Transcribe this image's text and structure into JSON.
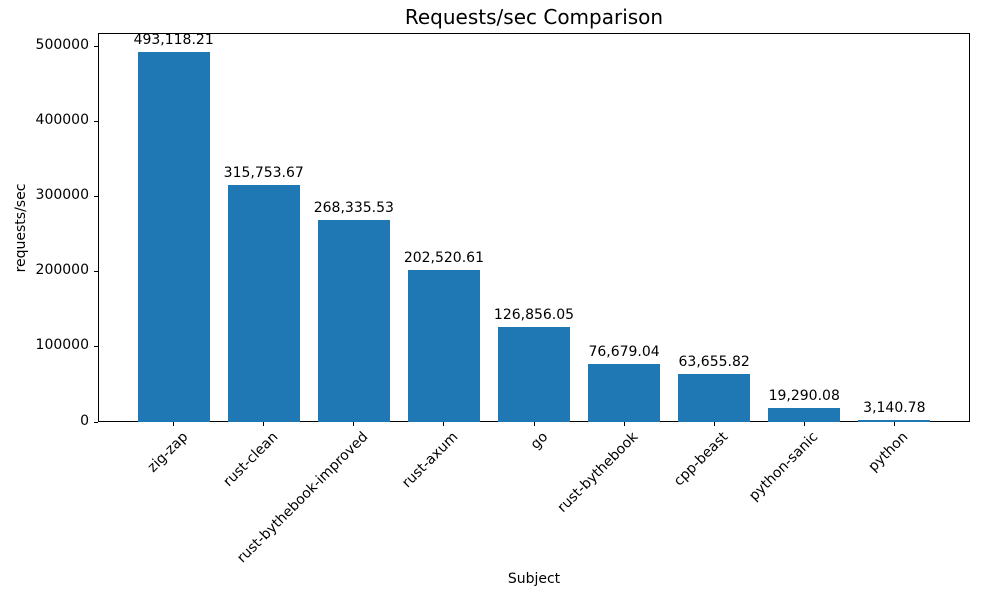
{
  "figure": {
    "background": "#ffffff"
  },
  "chart_data": {
    "type": "bar",
    "title": "Requests/sec Comparison",
    "xlabel": "Subject",
    "ylabel": "requests/sec",
    "categories": [
      "zig-zap",
      "rust-clean",
      "rust-bythebook-improved",
      "rust-axum",
      "go",
      "rust-bythebook",
      "cpp-beast",
      "python-sanic",
      "python"
    ],
    "values": [
      493118.21,
      315753.67,
      268335.53,
      202520.61,
      126856.05,
      76679.04,
      63655.82,
      19290.08,
      3140.78
    ],
    "bar_value_labels": [
      "493,118.21",
      "315,753.67",
      "268,335.53",
      "202,520.61",
      "126,856.05",
      "76,679.04",
      "63,655.82",
      "19,290.08",
      "3,140.78"
    ],
    "yticks": [
      0,
      100000,
      200000,
      300000,
      400000,
      500000
    ],
    "ytick_labels": [
      "0",
      "100000",
      "200000",
      "300000",
      "400000",
      "500000"
    ],
    "ylim": [
      0,
      517774
    ],
    "xtick_rotation": 45,
    "grid": false,
    "legend": "none",
    "bar_color": "#1f77b4",
    "axis_color": "#000000",
    "text_color": "#000000"
  }
}
